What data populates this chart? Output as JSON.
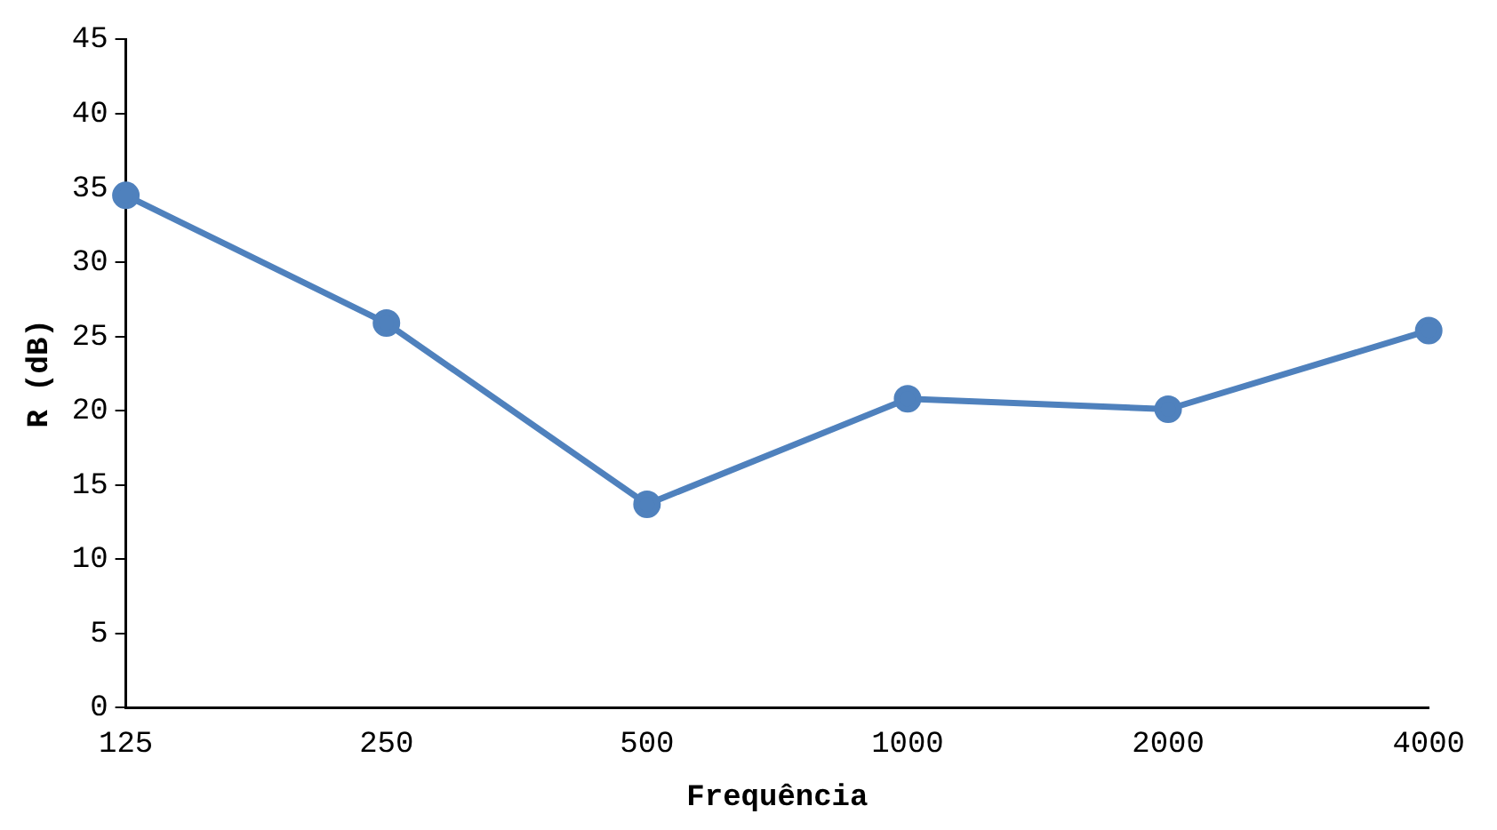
{
  "chart_data": {
    "type": "line",
    "xlabel": "Frequência",
    "ylabel": "R (dB)",
    "categories": [
      "125",
      "250",
      "500",
      "1000",
      "2000",
      "4000"
    ],
    "series": [
      {
        "color": "#4f81bd",
        "values": [
          34.5,
          25.9,
          13.7,
          20.8,
          20.1,
          25.4
        ]
      }
    ],
    "ylim": [
      0,
      45
    ],
    "yticks": [
      0,
      5,
      10,
      15,
      20,
      25,
      30,
      35,
      40,
      45
    ],
    "grid": false,
    "legend": false,
    "marker": "circle",
    "line_style": "solid"
  }
}
